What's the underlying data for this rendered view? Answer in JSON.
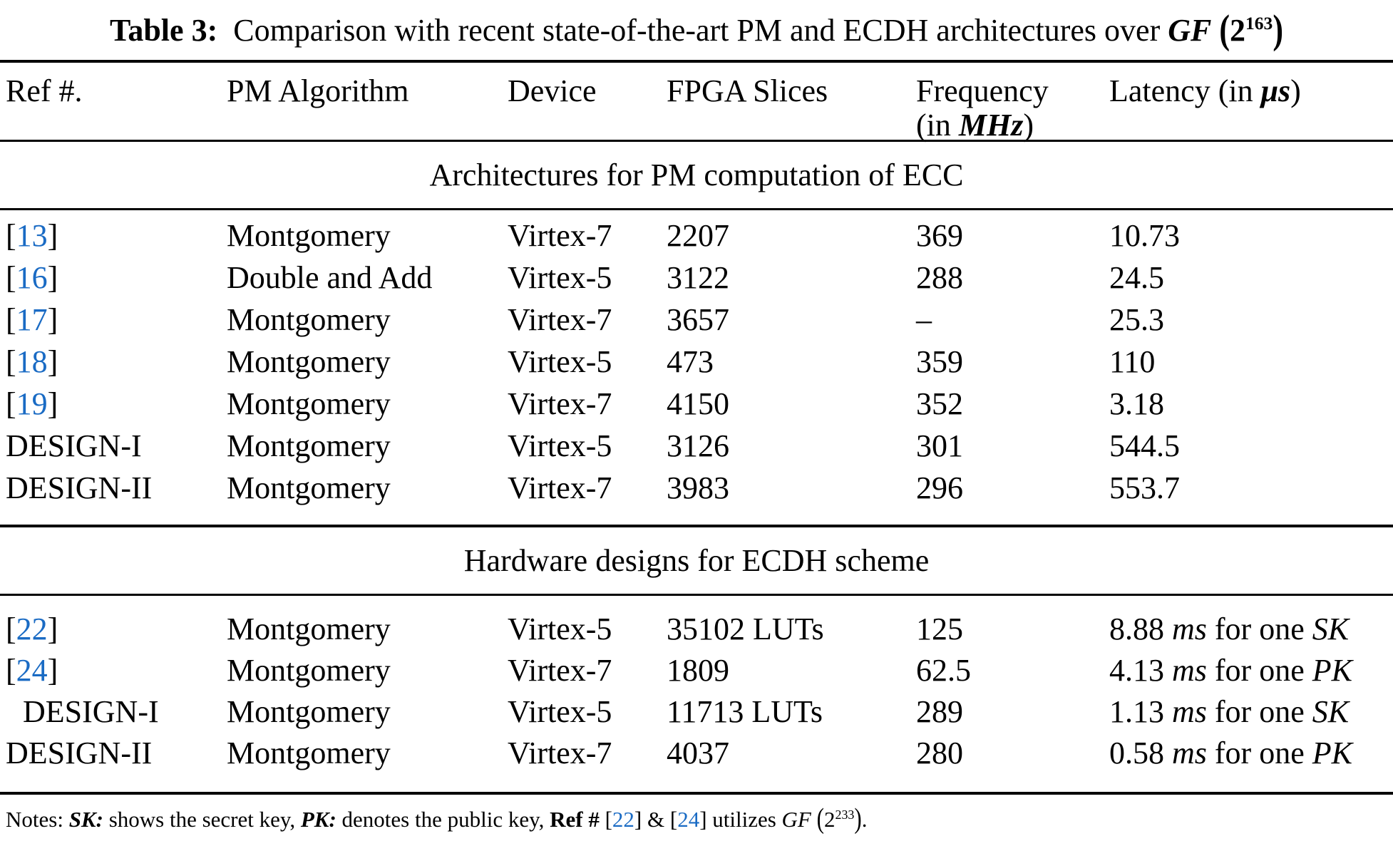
{
  "colors": {
    "citation_blue": "#1A6BC4",
    "text": "#000000",
    "background": "#FFFFFF",
    "rule": "#000000"
  },
  "title": {
    "segments": [
      {
        "t": "Table 3:",
        "b": true
      },
      {
        "t": "  Comparison with recent state-of-the-art PM and ECDH architectures over "
      },
      {
        "t": "GF",
        "b": true,
        "i": true
      },
      {
        "t": " "
      },
      {
        "t": "(",
        "b": true,
        "paren": true
      },
      {
        "t": "2",
        "b": true
      },
      {
        "t": "163",
        "b": true,
        "sup": true
      },
      {
        "t": ")",
        "b": true,
        "paren": true
      }
    ]
  },
  "table": {
    "headers": [
      {
        "id": "ref",
        "lines": [
          [
            {
              "t": "Ref #."
            }
          ]
        ]
      },
      {
        "id": "algorithm",
        "lines": [
          [
            {
              "t": "PM Algorithm"
            }
          ]
        ]
      },
      {
        "id": "device",
        "lines": [
          [
            {
              "t": "Device"
            }
          ]
        ]
      },
      {
        "id": "slices",
        "lines": [
          [
            {
              "t": "FPGA Slices"
            }
          ]
        ]
      },
      {
        "id": "frequency",
        "lines": [
          [
            {
              "t": "Frequency"
            }
          ],
          [
            {
              "t": "(in "
            },
            {
              "t": "MHz",
              "b": true,
              "i": true
            },
            {
              "t": ")"
            }
          ]
        ]
      },
      {
        "id": "latency",
        "lines": [
          [
            {
              "t": "Latency (in "
            },
            {
              "t": "μs",
              "b": true,
              "i": true
            },
            {
              "t": ")"
            }
          ]
        ]
      }
    ],
    "sections": [
      {
        "heading": "Architectures for PM computation of ECC",
        "rows": [
          {
            "ref": {
              "label": "13",
              "cite": true
            },
            "algorithm": "Montgomery",
            "device": "Virtex-7",
            "slices": "2207",
            "frequency": "369",
            "latency": [
              {
                "t": "10.73"
              }
            ]
          },
          {
            "ref": {
              "label": "16",
              "cite": true
            },
            "algorithm": "Double and Add",
            "device": "Virtex-5",
            "slices": "3122",
            "frequency": "288",
            "latency": [
              {
                "t": "24.5"
              }
            ]
          },
          {
            "ref": {
              "label": "17",
              "cite": true
            },
            "algorithm": "Montgomery",
            "device": "Virtex-7",
            "slices": "3657",
            "frequency": "–",
            "latency": [
              {
                "t": "25.3"
              }
            ]
          },
          {
            "ref": {
              "label": "18",
              "cite": true
            },
            "algorithm": "Montgomery",
            "device": "Virtex-5",
            "slices": "473",
            "frequency": "359",
            "latency": [
              {
                "t": "110"
              }
            ]
          },
          {
            "ref": {
              "label": "19",
              "cite": true
            },
            "algorithm": "Montgomery",
            "device": "Virtex-7",
            "slices": "4150",
            "frequency": "352",
            "latency": [
              {
                "t": "3.18"
              }
            ]
          },
          {
            "ref": {
              "label": "DESIGN-I",
              "cite": false
            },
            "algorithm": "Montgomery",
            "device": "Virtex-5",
            "slices": "3126",
            "frequency": "301",
            "latency": [
              {
                "t": "544.5"
              }
            ]
          },
          {
            "ref": {
              "label": "DESIGN-II",
              "cite": false
            },
            "algorithm": "Montgomery",
            "device": "Virtex-7",
            "slices": "3983",
            "frequency": "296",
            "latency": [
              {
                "t": "553.7"
              }
            ]
          }
        ]
      },
      {
        "heading": "Hardware designs for ECDH scheme",
        "rows": [
          {
            "ref": {
              "label": "22",
              "cite": true
            },
            "algorithm": "Montgomery",
            "device": "Virtex-5",
            "slices": "35102 LUTs",
            "frequency": "125",
            "latency": [
              {
                "t": "8.88 "
              },
              {
                "t": "ms",
                "i": true
              },
              {
                "t": " for one "
              },
              {
                "t": "SK",
                "i": true
              }
            ]
          },
          {
            "ref": {
              "label": "24",
              "cite": true
            },
            "algorithm": "Montgomery",
            "device": "Virtex-7",
            "slices": "1809",
            "frequency": "62.5",
            "latency": [
              {
                "t": "4.13 "
              },
              {
                "t": "ms",
                "i": true
              },
              {
                "t": " for one "
              },
              {
                "t": "PK",
                "i": true
              }
            ]
          },
          {
            "ref": {
              "label": "DESIGN-I",
              "cite": false,
              "indent": true
            },
            "algorithm": "Montgomery",
            "device": "Virtex-5",
            "slices": "11713 LUTs",
            "frequency": "289",
            "latency": [
              {
                "t": "1.13 "
              },
              {
                "t": "ms",
                "i": true
              },
              {
                "t": " for one "
              },
              {
                "t": "SK",
                "i": true
              }
            ]
          },
          {
            "ref": {
              "label": "DESIGN-II",
              "cite": false
            },
            "algorithm": "Montgomery",
            "device": "Virtex-7",
            "slices": "4037",
            "frequency": "280",
            "latency": [
              {
                "t": "0.58 "
              },
              {
                "t": "ms",
                "i": true
              },
              {
                "t": " for one "
              },
              {
                "t": "PK",
                "i": true
              }
            ]
          }
        ]
      }
    ]
  },
  "notes": {
    "segments": [
      {
        "t": "Notes: "
      },
      {
        "t": "SK:",
        "b": true,
        "i": true
      },
      {
        "t": " shows the secret key, "
      },
      {
        "t": "PK:",
        "b": true,
        "i": true
      },
      {
        "t": " denotes the public key, "
      },
      {
        "t": "Ref #",
        "b": true
      },
      {
        "t": " ["
      },
      {
        "t": "22",
        "blue": true
      },
      {
        "t": "] & ["
      },
      {
        "t": "24",
        "blue": true
      },
      {
        "t": "] utilizes "
      },
      {
        "t": "GF",
        "i": true
      },
      {
        "t": " "
      },
      {
        "t": "(",
        "paren": true
      },
      {
        "t": "2"
      },
      {
        "t": "233",
        "sup": true
      },
      {
        "t": ")",
        "paren": true
      },
      {
        "t": "."
      }
    ]
  }
}
